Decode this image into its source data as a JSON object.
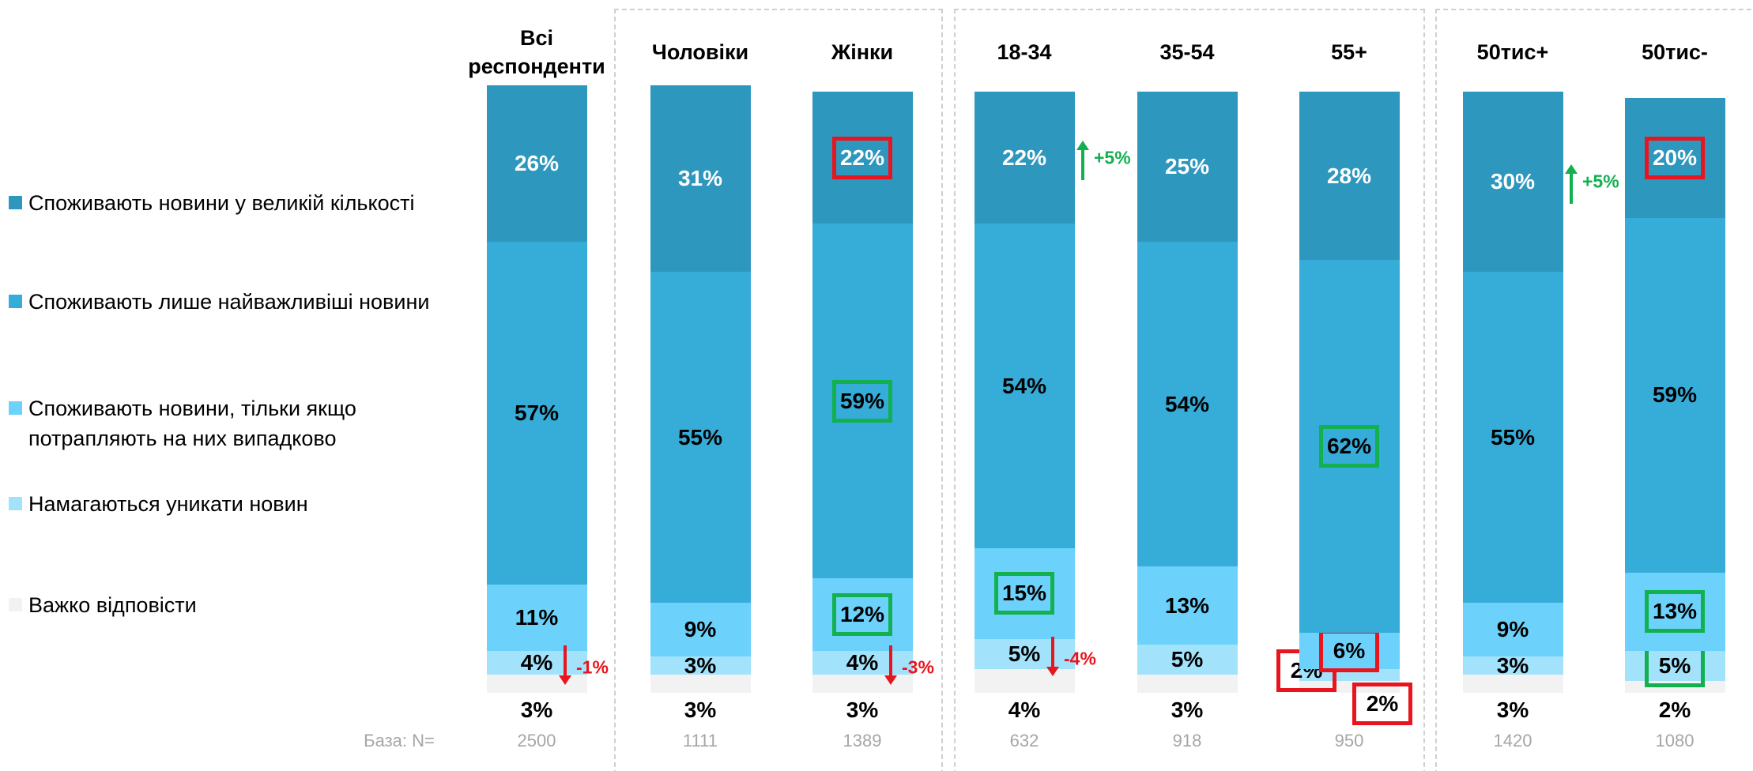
{
  "chart_data": {
    "type": "stacked_bar",
    "categories": [
      "Всі респонденти",
      "Чоловіки",
      "Жінки",
      "18-34",
      "35-54",
      "55+",
      "50тис+",
      "50тис-"
    ],
    "ylim": [
      0,
      100
    ],
    "series": [
      {
        "name": "Споживають новини у великій кількості",
        "color": "#2e97be",
        "label_color": "#ffffff",
        "values": [
          26,
          31,
          22,
          22,
          25,
          28,
          30,
          20
        ],
        "value_labels": [
          "26%",
          "31%",
          "22%",
          "22%",
          "25%",
          "28%",
          "30%",
          "20%"
        ],
        "box_colors": [
          null,
          null,
          "#e8141e",
          null,
          null,
          null,
          null,
          "#e8141e"
        ]
      },
      {
        "name": "Споживають лише найважливіші новини",
        "color": "#36acd9",
        "label_color": "#000000",
        "values": [
          57,
          55,
          59,
          54,
          54,
          62,
          55,
          59
        ],
        "value_labels": [
          "57%",
          "55%",
          "59%",
          "54%",
          "54%",
          "62%",
          "55%",
          "59%"
        ],
        "box_colors": [
          null,
          null,
          "#12b04f",
          null,
          null,
          "#12b04f",
          null,
          null
        ]
      },
      {
        "name": "Споживають новини, тільки якщо потрапляють на них випадково",
        "color": "#6cd2fb",
        "label_color": "#000000",
        "values": [
          11,
          9,
          12,
          15,
          13,
          6,
          9,
          13
        ],
        "value_labels": [
          "11%",
          "9%",
          "12%",
          "15%",
          "13%",
          "6%",
          "9%",
          "13%"
        ],
        "box_colors": [
          null,
          null,
          "#12b04f",
          "#12b04f",
          null,
          "#e8141e",
          null,
          "#12b04f"
        ]
      },
      {
        "name": "Намагаються уникати новин",
        "color": "#a3e2fb",
        "label_color": "#000000",
        "values": [
          4,
          3,
          4,
          5,
          5,
          2,
          3,
          5
        ],
        "value_labels": [
          "4%",
          "3%",
          "4%",
          "5%",
          "5%",
          "2%",
          "3%",
          "5%"
        ],
        "box_colors": [
          null,
          null,
          null,
          null,
          null,
          "#e8141e",
          null,
          "#12b04f"
        ]
      },
      {
        "name": "Важко відповісти",
        "color": "#f2f2f2",
        "label_color": "#000000",
        "values": [
          3,
          3,
          3,
          4,
          3,
          2,
          3,
          2
        ],
        "value_labels": [
          "3%",
          "3%",
          "3%",
          "4%",
          "3%",
          "2%",
          "3%",
          "2%"
        ],
        "box_colors": [
          null,
          null,
          null,
          null,
          null,
          "#e8141e",
          null,
          null
        ]
      }
    ],
    "annotations": [
      {
        "text": "-1%",
        "color": "#e8141e"
      },
      {
        "text": "-3%",
        "color": "#e8141e"
      },
      {
        "text": "+5%",
        "color": "#12b04f"
      },
      {
        "text": "-4%",
        "color": "#e8141e"
      },
      {
        "text": "+5%",
        "color": "#12b04f"
      }
    ],
    "base_label": "База: N=",
    "base_n": [
      2500,
      1111,
      1389,
      632,
      918,
      950,
      1420,
      1080
    ]
  }
}
